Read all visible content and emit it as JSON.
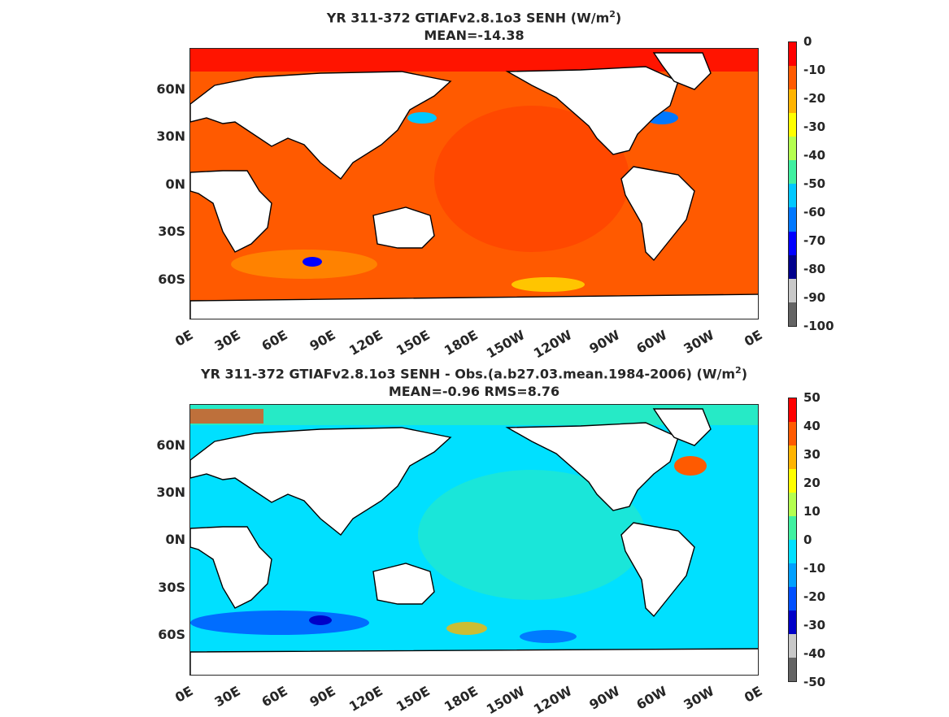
{
  "panels": [
    {
      "title_main": "YR 311-372 GTIAFv2.8.1o3  SENH (W/m",
      "title_sup": "2",
      "title_close": ")",
      "stats": "MEAN=-14.38",
      "colorbar": {
        "ticks": [
          "0",
          "-10",
          "-20",
          "-30",
          "-40",
          "-50",
          "-60",
          "-70",
          "-80",
          "-90",
          "-100"
        ],
        "colors": [
          "#ff0000",
          "#ff5a00",
          "#ffb400",
          "#ffff00",
          "#b4ff50",
          "#40f0a0",
          "#00c8ff",
          "#0078ff",
          "#0000ff",
          "#00008c",
          "#c8c8c8",
          "#646464"
        ]
      }
    },
    {
      "title_main": "YR 311-372 GTIAFv2.8.1o3 SENH - Obs.(a.b27.03.mean.1984-2006) (W/m",
      "title_sup": "2",
      "title_close": ")",
      "stats": "MEAN=-0.96 RMS=8.76",
      "colorbar": {
        "ticks": [
          "50",
          "40",
          "30",
          "20",
          "10",
          "0",
          "-10",
          "-20",
          "-30",
          "-40",
          "-50"
        ],
        "colors": [
          "#ff0000",
          "#ff5a00",
          "#ffb400",
          "#ffff00",
          "#b4ff50",
          "#40f0a0",
          "#00e0ff",
          "#00a0ff",
          "#0050ff",
          "#0000c8",
          "#c8c8c8",
          "#646464"
        ]
      }
    }
  ],
  "y_axis": [
    "60N",
    "30N",
    "0N",
    "30S",
    "60S"
  ],
  "x_axis": [
    "0E",
    "30E",
    "60E",
    "90E",
    "120E",
    "150E",
    "180E",
    "150W",
    "120W",
    "90W",
    "60W",
    "30W",
    "0E"
  ]
}
